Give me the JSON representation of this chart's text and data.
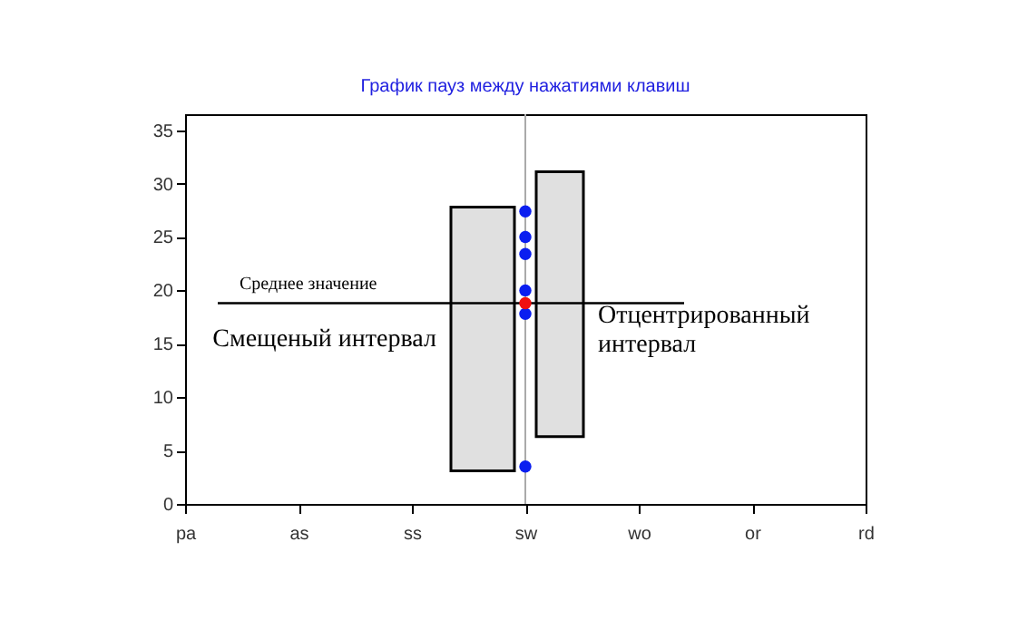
{
  "chart_data": {
    "type": "scatter",
    "title": "График пауз между нажатиями клавиш",
    "categories": [
      "pa",
      "as",
      "ss",
      "sw",
      "wo",
      "or",
      "rd"
    ],
    "series": [
      {
        "x": [
          "sw",
          "sw",
          "sw",
          "sw",
          "sw",
          "sw"
        ],
        "values": [
          27.4,
          25.0,
          23.4,
          20.0,
          17.8,
          3.5
        ],
        "color": "#0a1ef0"
      },
      {
        "x": [
          "sw"
        ],
        "values": [
          18.8
        ],
        "color": "#f01010"
      }
    ],
    "ylim": [
      0,
      36.5
    ],
    "yticks": [
      0,
      5,
      10,
      15,
      20,
      25,
      30,
      35
    ],
    "ref_lines": [
      {
        "axis": "x",
        "value": "sw",
        "color": "#aaaaaa"
      },
      {
        "axis": "y",
        "value": 18.8,
        "label": "Среднее значение",
        "color": "#000000"
      }
    ],
    "bands": [
      {
        "axis": "y",
        "from": 3.1,
        "to": 27.8,
        "label": "Смещеный интервал",
        "color": "#000000"
      },
      {
        "axis": "y",
        "from": 6.3,
        "to": 31.1,
        "label": "Отцентрированный интервал",
        "color": "#000000"
      }
    ],
    "marker": "circle",
    "grid": false
  }
}
